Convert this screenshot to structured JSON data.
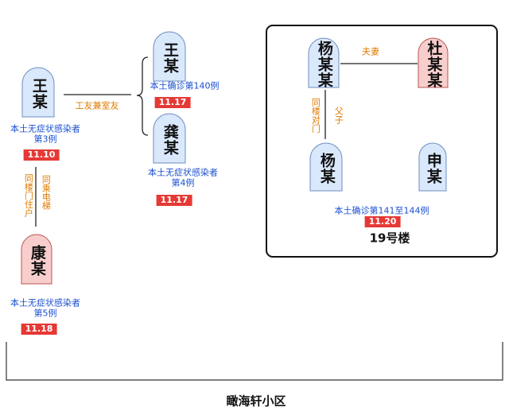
{
  "nodes": [
    {
      "name": "王某"
    },
    {
      "name": "王某"
    },
    {
      "name": "龚某"
    },
    {
      "name": "康某"
    },
    {
      "name": "杨某某"
    },
    {
      "name": "杜某某"
    },
    {
      "name": "杨某"
    },
    {
      "name": "申某"
    }
  ],
  "captions": [
    {
      "lines": [
        "本土无症状感染者",
        "第3例"
      ],
      "date": "11.10"
    },
    {
      "lines": [
        "本土确诊第140例"
      ],
      "date": "11.17"
    },
    {
      "lines": [
        "本土无症状感染者",
        "第4例"
      ],
      "date": "11.17"
    },
    {
      "lines": [
        "本土无症状感染者",
        "第5例"
      ],
      "date": "11.18"
    },
    {
      "lines": [
        "本土确诊第141至144例"
      ],
      "date": "11.20"
    }
  ],
  "relations": [
    "工友兼室友",
    "同楼门住户",
    "同乘电梯",
    "夫妻",
    "同楼对门",
    "父子"
  ],
  "building": "19号楼",
  "community": "瞰海轩小区"
}
